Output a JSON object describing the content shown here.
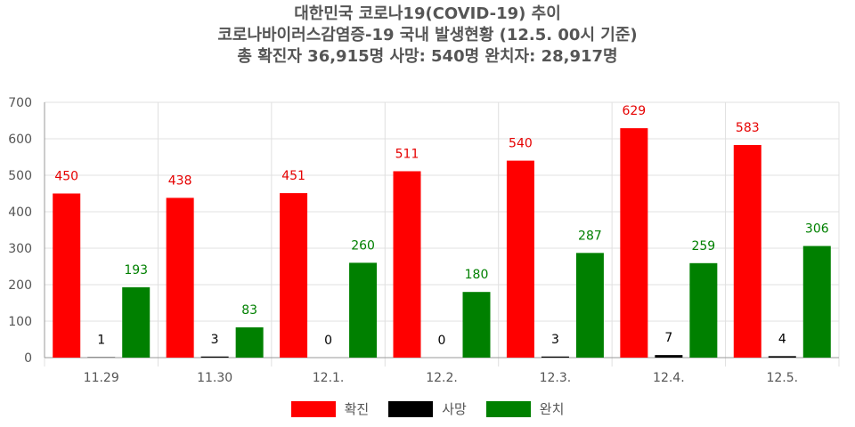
{
  "chart_data": {
    "type": "bar",
    "title_lines": [
      "대한민국 코로나19(COVID-19) 추이",
      "코로나바이러스감염증-19 국내 발생현황 (12.5. 00시 기준)",
      "총 확진자 36,915명  사망: 540명  완치자: 28,917명"
    ],
    "categories": [
      "11.29",
      "11.30",
      "12.1.",
      "12.2.",
      "12.3.",
      "12.4.",
      "12.5."
    ],
    "series": [
      {
        "name": "확진",
        "color": "#ff0000",
        "label_color": "#e60000",
        "values": [
          450,
          438,
          451,
          511,
          540,
          629,
          583
        ]
      },
      {
        "name": "사망",
        "color": "#000000",
        "label_color": "#000000",
        "values": [
          1,
          3,
          0,
          0,
          3,
          7,
          4
        ]
      },
      {
        "name": "완치",
        "color": "#008000",
        "label_color": "#008000",
        "values": [
          193,
          83,
          260,
          180,
          287,
          259,
          306
        ]
      }
    ],
    "y_ticks": [
      "0",
      "100",
      "200",
      "300",
      "400",
      "500",
      "600",
      "700"
    ],
    "ylim": [
      0,
      700
    ],
    "grid": true,
    "legend_position": "bottom"
  }
}
